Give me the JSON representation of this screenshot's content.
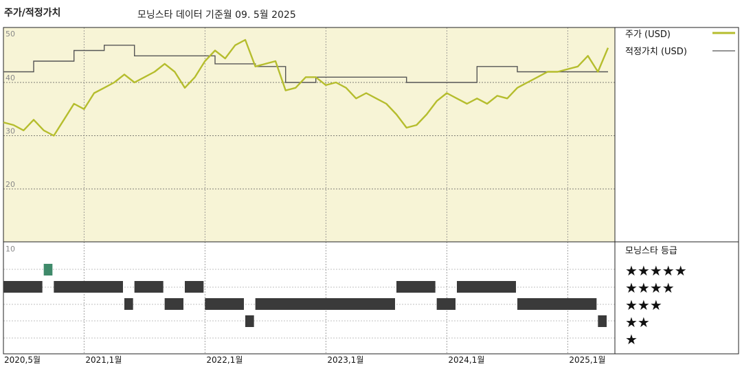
{
  "header": {
    "title": "주가/적정가치",
    "subtitle": "모닝스타 데이터 기준월 09. 5월 2025"
  },
  "colors": {
    "price": "#b5bd2d",
    "fair_value": "#555555",
    "upper_bg": "#f7f4d6",
    "rating_highlight": "#3f8a6a",
    "bars": "#3a3a3a"
  },
  "chart_data": {
    "type": "line",
    "title": "주가/적정가치",
    "x_ticks": [
      "2020,5월",
      "2021,1월",
      "2022,1월",
      "2023,1월",
      "2024,1월",
      "2025,1월"
    ],
    "x_range": [
      "2020-05",
      "2025-05"
    ],
    "y_ticks": [
      "50",
      "40",
      "30",
      "20",
      "10"
    ],
    "ylim": [
      10,
      50
    ],
    "grid": true,
    "legend_position": "top-right",
    "series": [
      {
        "name": "주가 (USD)",
        "x": [
          "2020-05",
          "2020-06",
          "2020-07",
          "2020-08",
          "2020-09",
          "2020-10",
          "2020-11",
          "2020-12",
          "2021-01",
          "2021-02",
          "2021-03",
          "2021-04",
          "2021-05",
          "2021-06",
          "2021-07",
          "2021-08",
          "2021-09",
          "2021-10",
          "2021-11",
          "2021-12",
          "2022-01",
          "2022-02",
          "2022-03",
          "2022-04",
          "2022-05",
          "2022-06",
          "2022-07",
          "2022-08",
          "2022-09",
          "2022-10",
          "2022-11",
          "2022-12",
          "2023-01",
          "2023-02",
          "2023-03",
          "2023-04",
          "2023-05",
          "2023-06",
          "2023-07",
          "2023-08",
          "2023-09",
          "2023-10",
          "2023-11",
          "2023-12",
          "2024-01",
          "2024-02",
          "2024-03",
          "2024-04",
          "2024-05",
          "2024-06",
          "2024-07",
          "2024-08",
          "2024-09",
          "2024-10",
          "2024-11",
          "2024-12",
          "2025-01",
          "2025-02",
          "2025-03",
          "2025-04",
          "2025-05"
        ],
        "values": [
          32.5,
          32,
          31,
          33,
          31,
          30,
          33,
          36,
          35,
          38,
          39,
          40,
          41.5,
          40,
          41,
          42,
          43.5,
          42,
          39,
          41,
          44,
          46,
          44.5,
          47,
          48,
          43,
          43.5,
          44,
          38.5,
          39,
          41,
          41,
          39.5,
          40,
          39,
          37,
          38,
          37,
          36,
          34,
          31.5,
          32,
          34,
          36.5,
          38,
          37,
          36,
          37,
          36,
          37.5,
          37,
          39,
          40,
          41,
          42,
          42,
          42.5,
          43,
          45,
          42,
          46.5
        ]
      },
      {
        "name": "적정가치 (USD)",
        "x": [
          "2020-05",
          "2020-08",
          "2020-12",
          "2021-03",
          "2021-06",
          "2021-09",
          "2022-02",
          "2022-06",
          "2022-09",
          "2022-12",
          "2023-05",
          "2023-09",
          "2024-01",
          "2024-04",
          "2024-08",
          "2025-05"
        ],
        "values": [
          42,
          44,
          46,
          47,
          45,
          45,
          43.5,
          43,
          40,
          41,
          41,
          40,
          40,
          43,
          42,
          42
        ]
      }
    ]
  },
  "rating": {
    "title": "모닝스타 등급",
    "levels": [
      {
        "stars": 5,
        "label": "★★★★★"
      },
      {
        "stars": 4,
        "label": "★★★★"
      },
      {
        "stars": 3,
        "label": "★★★"
      },
      {
        "stars": 2,
        "label": "★★"
      },
      {
        "stars": 1,
        "label": "★"
      }
    ],
    "history": [
      {
        "start": "2020-05",
        "end": "2020-09",
        "stars": 4
      },
      {
        "start": "2020-09",
        "end": "2020-10",
        "stars": 5
      },
      {
        "start": "2020-10",
        "end": "2021-05",
        "stars": 4
      },
      {
        "start": "2021-05",
        "end": "2021-06",
        "stars": 3
      },
      {
        "start": "2021-06",
        "end": "2021-09",
        "stars": 4
      },
      {
        "start": "2021-09",
        "end": "2021-11",
        "stars": 3
      },
      {
        "start": "2021-11",
        "end": "2022-01",
        "stars": 4
      },
      {
        "start": "2022-01",
        "end": "2022-05",
        "stars": 3
      },
      {
        "start": "2022-05",
        "end": "2022-06",
        "stars": 2
      },
      {
        "start": "2022-06",
        "end": "2023-08",
        "stars": 3
      },
      {
        "start": "2023-08",
        "end": "2023-12",
        "stars": 4
      },
      {
        "start": "2023-12",
        "end": "2024-02",
        "stars": 3
      },
      {
        "start": "2024-02",
        "end": "2024-08",
        "stars": 4
      },
      {
        "start": "2024-08",
        "end": "2025-04",
        "stars": 3
      },
      {
        "start": "2025-04",
        "end": "2025-05",
        "stars": 2
      }
    ]
  }
}
